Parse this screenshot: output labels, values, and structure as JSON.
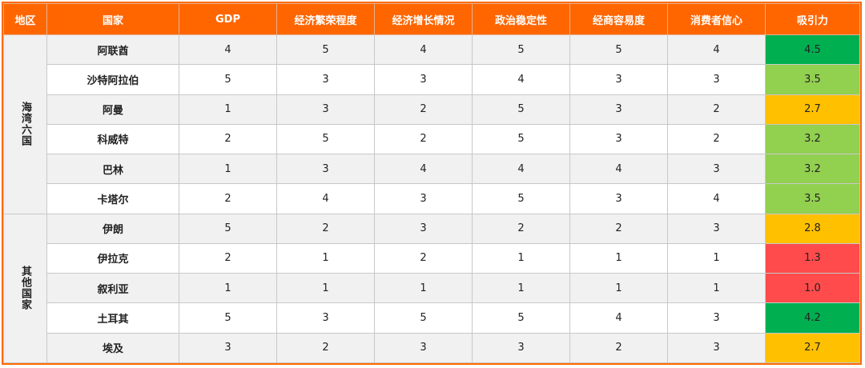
{
  "headers": [
    "地区",
    "国家",
    "GDP",
    "经济繁荣程度",
    "经济增长情况",
    "政治稳定性",
    "经商容易度",
    "消费者信心",
    "吸引力"
  ],
  "regions": [
    {
      "name": "海湾六国",
      "rows": [
        {
          "country": "阿联酋",
          "values": [
            "4",
            "5",
            "4",
            "5",
            "5",
            "4"
          ],
          "score": "4.5",
          "color": "#00b050"
        },
        {
          "country": "沙特阿拉伯",
          "values": [
            "5",
            "3",
            "3",
            "4",
            "3",
            "3"
          ],
          "score": "3.5",
          "color": "#92d050"
        },
        {
          "country": "阿曼",
          "values": [
            "1",
            "3",
            "2",
            "5",
            "3",
            "2"
          ],
          "score": "2.7",
          "color": "#ffc000"
        },
        {
          "country": "科威特",
          "values": [
            "2",
            "5",
            "2",
            "5",
            "3",
            "2"
          ],
          "score": "3.2",
          "color": "#92d050"
        },
        {
          "country": "巴林",
          "values": [
            "1",
            "3",
            "4",
            "4",
            "4",
            "3"
          ],
          "score": "3.2",
          "color": "#92d050"
        },
        {
          "country": "卡塔尔",
          "values": [
            "2",
            "4",
            "3",
            "5",
            "3",
            "4"
          ],
          "score": "3.5",
          "color": "#92d050"
        }
      ]
    },
    {
      "name": "其他国家",
      "rows": [
        {
          "country": "伊朗",
          "values": [
            "5",
            "2",
            "3",
            "2",
            "2",
            "3"
          ],
          "score": "2.8",
          "color": "#ffc000"
        },
        {
          "country": "伊拉克",
          "values": [
            "2",
            "1",
            "2",
            "1",
            "1",
            "1"
          ],
          "score": "1.3",
          "color": "#ff4b4b"
        },
        {
          "country": "叙利亚",
          "values": [
            "1",
            "1",
            "1",
            "1",
            "1",
            "1"
          ],
          "score": "1.0",
          "color": "#ff4b4b"
        },
        {
          "country": "土耳其",
          "values": [
            "5",
            "3",
            "5",
            "5",
            "4",
            "3"
          ],
          "score": "4.2",
          "color": "#00b050"
        },
        {
          "country": "埃及",
          "values": [
            "3",
            "2",
            "3",
            "3",
            "2",
            "3"
          ],
          "score": "2.7",
          "color": "#ffc000"
        }
      ]
    }
  ]
}
